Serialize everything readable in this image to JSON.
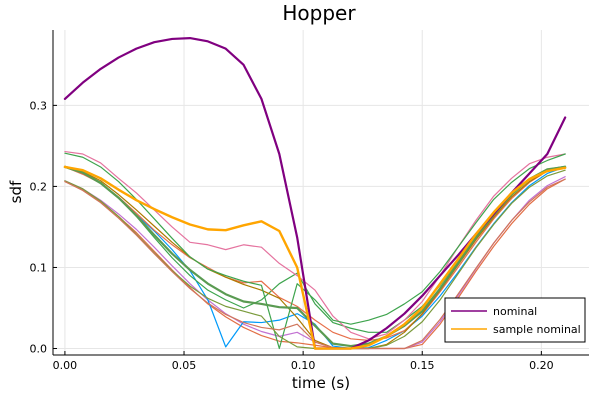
{
  "chart_data": {
    "type": "line",
    "title": "Hopper",
    "xlabel": "time (s)",
    "ylabel": "sdf",
    "xlim": [
      -0.005,
      0.22
    ],
    "ylim": [
      -0.008,
      0.393
    ],
    "xticks": [
      0.0,
      0.05,
      0.1,
      0.15,
      0.2
    ],
    "xtick_labels": [
      "0.00",
      "0.05",
      "0.10",
      "0.15",
      "0.20"
    ],
    "yticks": [
      0.0,
      0.1,
      0.2,
      0.3
    ],
    "ytick_labels": [
      "0.0",
      "0.1",
      "0.2",
      "0.3"
    ],
    "grid": true,
    "legend_position": "bottom-right",
    "x": [
      0.0,
      0.0075,
      0.015,
      0.0225,
      0.03,
      0.0375,
      0.045,
      0.0525,
      0.06,
      0.0675,
      0.075,
      0.0825,
      0.09,
      0.0975,
      0.105,
      0.1125,
      0.12,
      0.1275,
      0.135,
      0.1425,
      0.15,
      0.1575,
      0.165,
      0.1725,
      0.18,
      0.1875,
      0.195,
      0.2025,
      0.21
    ],
    "series": [
      {
        "name": "",
        "color": "#e26f46",
        "width": 1.2,
        "values": [
          0.206,
          0.196,
          0.181,
          0.163,
          0.143,
          0.12,
          0.097,
          0.075,
          0.055,
          0.039,
          0.026,
          0.016,
          0.009,
          0.007,
          0.004,
          0.001,
          0.0,
          0.0,
          0.0,
          0.0,
          0.005,
          0.03,
          0.062,
          0.095,
          0.126,
          0.154,
          0.178,
          0.197,
          0.209
        ]
      },
      {
        "name": "",
        "color": "#c271d2",
        "width": 1.2,
        "values": [
          0.207,
          0.197,
          0.183,
          0.166,
          0.147,
          0.125,
          0.102,
          0.08,
          0.06,
          0.043,
          0.03,
          0.021,
          0.015,
          0.02,
          0.008,
          0.001,
          0.0,
          0.0,
          0.0,
          0.0,
          0.008,
          0.033,
          0.065,
          0.098,
          0.13,
          0.158,
          0.183,
          0.201,
          0.212
        ]
      },
      {
        "name": "",
        "color": "#009af9",
        "width": 1.2,
        "values": [
          0.224,
          0.216,
          0.205,
          0.186,
          0.165,
          0.145,
          0.122,
          0.096,
          0.06,
          0.002,
          0.033,
          0.032,
          0.035,
          0.043,
          0.03,
          0.003,
          0.0,
          0.001,
          0.01,
          0.022,
          0.04,
          0.065,
          0.094,
          0.125,
          0.154,
          0.18,
          0.201,
          0.216,
          0.224
        ]
      },
      {
        "name": "",
        "color": "#3da44d",
        "width": 1.2,
        "values": [
          0.224,
          0.217,
          0.205,
          0.186,
          0.163,
          0.137,
          0.112,
          0.09,
          0.072,
          0.06,
          0.05,
          0.06,
          0.08,
          0.093,
          0.055,
          0.032,
          0.025,
          0.02,
          0.02,
          0.035,
          0.052,
          0.078,
          0.108,
          0.138,
          0.166,
          0.19,
          0.209,
          0.221,
          0.225
        ]
      },
      {
        "name": "",
        "color": "#e76f4a",
        "width": 1.2,
        "values": [
          0.224,
          0.215,
          0.204,
          0.187,
          0.167,
          0.146,
          0.128,
          0.112,
          0.1,
          0.088,
          0.081,
          0.083,
          0.063,
          0.052,
          0.035,
          0.02,
          0.012,
          0.01,
          0.013,
          0.022,
          0.042,
          0.07,
          0.1,
          0.131,
          0.16,
          0.185,
          0.205,
          0.219,
          0.224
        ]
      },
      {
        "name": "",
        "color": "#ad7a00",
        "width": 1.2,
        "values": [
          0.225,
          0.218,
          0.207,
          0.19,
          0.171,
          0.151,
          0.131,
          0.113,
          0.098,
          0.088,
          0.079,
          0.072,
          0.062,
          0.038,
          0.01,
          0.001,
          0.0,
          0.0,
          0.005,
          0.02,
          0.043,
          0.072,
          0.103,
          0.134,
          0.162,
          0.187,
          0.206,
          0.219,
          0.224
        ]
      },
      {
        "name": "",
        "color": "#e5739f",
        "width": 1.2,
        "values": [
          0.243,
          0.24,
          0.229,
          0.21,
          0.192,
          0.171,
          0.15,
          0.131,
          0.128,
          0.122,
          0.128,
          0.125,
          0.105,
          0.09,
          0.072,
          0.04,
          0.02,
          0.012,
          0.018,
          0.035,
          0.058,
          0.09,
          0.125,
          0.158,
          0.188,
          0.21,
          0.228,
          0.236,
          0.24
        ]
      },
      {
        "name": "",
        "color": "#3ea44d",
        "width": 1.2,
        "values": [
          0.241,
          0.236,
          0.224,
          0.206,
          0.184,
          0.16,
          0.136,
          0.113,
          0.098,
          0.09,
          0.083,
          0.078,
          0.0,
          0.08,
          0.06,
          0.035,
          0.03,
          0.035,
          0.042,
          0.055,
          0.07,
          0.095,
          0.125,
          0.155,
          0.184,
          0.205,
          0.222,
          0.232,
          0.24
        ]
      },
      {
        "name": "",
        "color": "#7a9b3c",
        "width": 1.2,
        "values": [
          0.207,
          0.197,
          0.182,
          0.163,
          0.141,
          0.118,
          0.096,
          0.077,
          0.062,
          0.052,
          0.046,
          0.04,
          0.015,
          0.002,
          0.0,
          0.0,
          0.0,
          0.0,
          0.004,
          0.015,
          0.033,
          0.06,
          0.092,
          0.124,
          0.153,
          0.179,
          0.199,
          0.213,
          0.22
        ]
      },
      {
        "name": "",
        "color": "#d0765b",
        "width": 1.2,
        "values": [
          0.206,
          0.195,
          0.18,
          0.161,
          0.14,
          0.117,
          0.095,
          0.074,
          0.056,
          0.042,
          0.032,
          0.026,
          0.023,
          0.03,
          0.008,
          0.001,
          0.0,
          0.0,
          0.0,
          0.0,
          0.01,
          0.036,
          0.067,
          0.099,
          0.13,
          0.158,
          0.181,
          0.199,
          0.209
        ]
      },
      {
        "name": "",
        "color": "#5a9b52",
        "width": 2.2,
        "values": [
          0.224,
          0.217,
          0.204,
          0.186,
          0.164,
          0.14,
          0.117,
          0.097,
          0.08,
          0.067,
          0.058,
          0.055,
          0.051,
          0.05,
          0.028,
          0.006,
          0.003,
          0.006,
          0.015,
          0.028,
          0.046,
          0.074,
          0.105,
          0.137,
          0.165,
          0.19,
          0.209,
          0.221,
          0.224
        ]
      },
      {
        "name": "nominal",
        "color": "#800080",
        "width": 2.2,
        "values": [
          0.308,
          0.328,
          0.345,
          0.359,
          0.37,
          0.378,
          0.382,
          0.383,
          0.379,
          0.37,
          0.35,
          0.308,
          0.24,
          0.137,
          0.0,
          0.0,
          0.0,
          0.01,
          0.025,
          0.043,
          0.065,
          0.09,
          0.115,
          0.141,
          0.166,
          0.192,
          0.216,
          0.24,
          0.285
        ]
      },
      {
        "name": "sample nominal",
        "color": "#ffa500",
        "width": 2.4,
        "values": [
          0.224,
          0.22,
          0.21,
          0.196,
          0.183,
          0.172,
          0.162,
          0.153,
          0.147,
          0.146,
          0.152,
          0.157,
          0.145,
          0.1,
          0.0,
          0.0,
          0.0,
          0.004,
          0.015,
          0.03,
          0.05,
          0.08,
          0.11,
          0.141,
          0.168,
          0.192,
          0.209,
          0.219,
          0.223
        ]
      }
    ]
  }
}
